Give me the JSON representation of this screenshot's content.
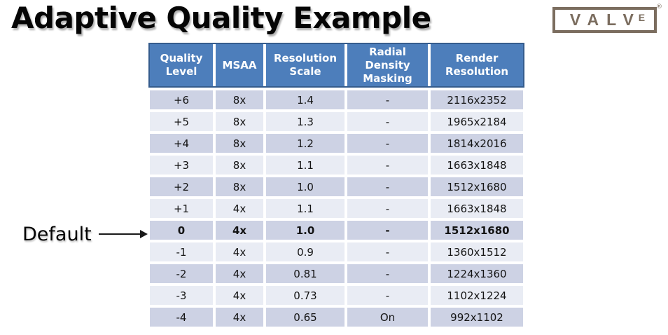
{
  "title": "Adaptive Quality Example",
  "logo": {
    "text_main": "VALV",
    "text_e": "E",
    "registered": "®",
    "color": "#7b6d5f"
  },
  "annotation": {
    "label": "Default"
  },
  "colors": {
    "header_bg": "#4d7ebb",
    "header_border": "#355c8d",
    "row_dark": "#cdd2e4",
    "row_light": "#e9ecf4",
    "header_text": "#ffffff",
    "body_text": "#141414"
  },
  "chart_data": {
    "type": "table",
    "title": "Adaptive Quality Example",
    "columns": [
      "Quality Level",
      "MSAA",
      "Resolution Scale",
      "Radial Density Masking",
      "Render Resolution"
    ],
    "rows": [
      {
        "cells": [
          "+6",
          "8x",
          "1.4",
          "-",
          "2116x2352"
        ],
        "bold": false
      },
      {
        "cells": [
          "+5",
          "8x",
          "1.3",
          "-",
          "1965x2184"
        ],
        "bold": false
      },
      {
        "cells": [
          "+4",
          "8x",
          "1.2",
          "-",
          "1814x2016"
        ],
        "bold": false
      },
      {
        "cells": [
          "+3",
          "8x",
          "1.1",
          "-",
          "1663x1848"
        ],
        "bold": false
      },
      {
        "cells": [
          "+2",
          "8x",
          "1.0",
          "-",
          "1512x1680"
        ],
        "bold": false
      },
      {
        "cells": [
          "+1",
          "4x",
          "1.1",
          "-",
          "1663x1848"
        ],
        "bold": false
      },
      {
        "cells": [
          "0",
          "4x",
          "1.0",
          "-",
          "1512x1680"
        ],
        "bold": true,
        "annotation": "Default"
      },
      {
        "cells": [
          "-1",
          "4x",
          "0.9",
          "-",
          "1360x1512"
        ],
        "bold": false
      },
      {
        "cells": [
          "-2",
          "4x",
          "0.81",
          "-",
          "1224x1360"
        ],
        "bold": false
      },
      {
        "cells": [
          "-3",
          "4x",
          "0.73",
          "-",
          "1102x1224"
        ],
        "bold": false
      },
      {
        "cells": [
          "-4",
          "4x",
          "0.65",
          "On",
          "992x1102"
        ],
        "bold": false
      }
    ]
  }
}
